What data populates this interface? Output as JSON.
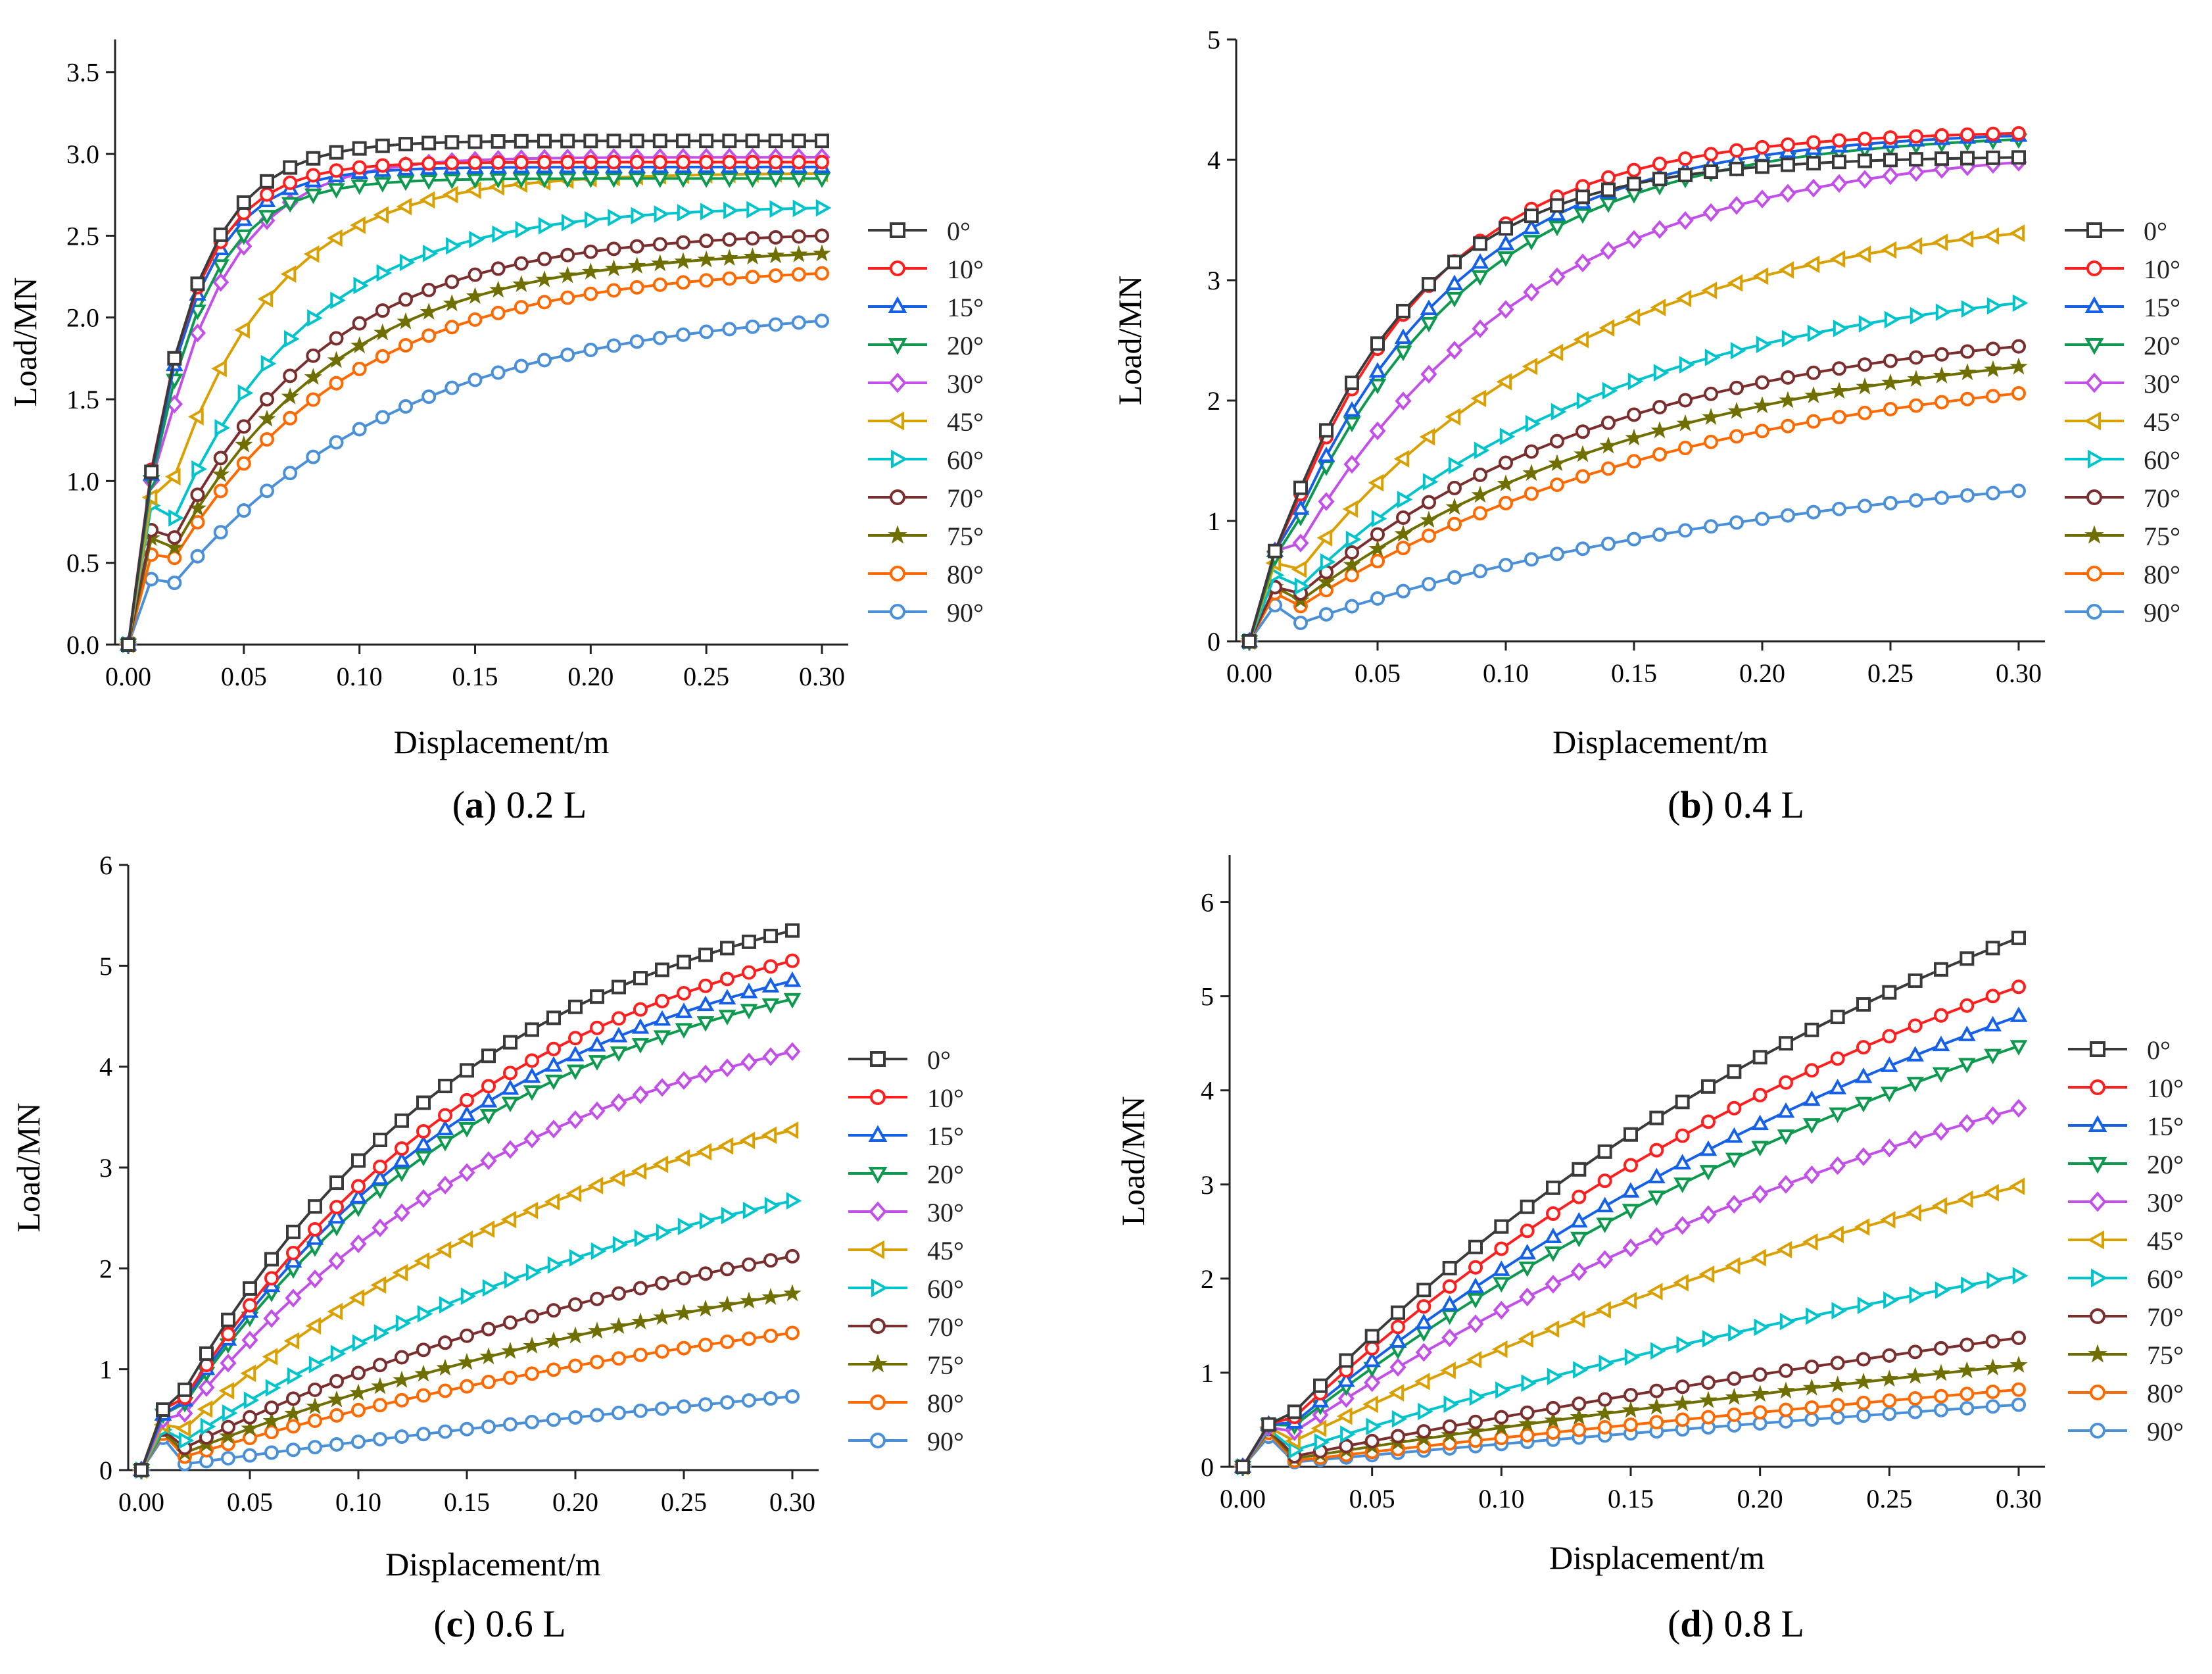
{
  "figure": {
    "captions": [
      {
        "letter": "a",
        "text": ") 0.2 L"
      },
      {
        "letter": "b",
        "text": ") 0.4 L"
      },
      {
        "letter": "c",
        "text": ") 0.6 L"
      },
      {
        "letter": "d",
        "text": ") 0.8 L"
      }
    ],
    "open_paren": "("
  },
  "series_style": [
    {
      "name": "0°",
      "color": "#3a3a3a",
      "marker": "square-icon"
    },
    {
      "name": "10°",
      "color": "#ff1f1f",
      "marker": "circle-icon"
    },
    {
      "name": "15°",
      "color": "#1560e8",
      "marker": "triangle-up-icon"
    },
    {
      "name": "20°",
      "color": "#0d9a4f",
      "marker": "triangle-down-icon"
    },
    {
      "name": "30°",
      "color": "#c24fe8",
      "marker": "diamond-icon"
    },
    {
      "name": "45°",
      "color": "#d9a000",
      "marker": "triangle-left-icon"
    },
    {
      "name": "60°",
      "color": "#00c4cc",
      "marker": "triangle-right-icon"
    },
    {
      "name": "70°",
      "color": "#7a2e2e",
      "marker": "circle-icon"
    },
    {
      "name": "75°",
      "color": "#6f6f00",
      "marker": "star-icon"
    },
    {
      "name": "80°",
      "color": "#ff6a00",
      "marker": "circle-icon"
    },
    {
      "name": "90°",
      "color": "#4a90d9",
      "marker": "circle-icon"
    }
  ],
  "chart_data": [
    {
      "type": "line",
      "title": "(a) 0.2 L",
      "xlabel": "Displacement/m",
      "ylabel": "Load/MN",
      "xlim": [
        0,
        0.3
      ],
      "ylim": [
        0,
        3.7
      ],
      "xticks": [
        0.0,
        0.05,
        0.1,
        0.15,
        0.2,
        0.25,
        0.3
      ],
      "xtick_labels": [
        "0.00",
        "0.05",
        "0.10",
        "0.15",
        "0.20",
        "0.25",
        "0.30"
      ],
      "yticks": [
        0,
        0.5,
        1.0,
        1.5,
        2.0,
        2.5,
        3.0,
        3.5
      ],
      "ytick_labels": [
        "0.0",
        "0.5",
        "1.0",
        "1.5",
        "2.0",
        "2.5",
        "3.0",
        "3.5"
      ],
      "legend": [
        "0°",
        "10°",
        "15°",
        "20°",
        "30°",
        "45°",
        "60°",
        "70°",
        "75°",
        "80°",
        "90°"
      ],
      "series": [
        {
          "name": "0°",
          "final": 3.08,
          "k": 42,
          "early": 1.03
        },
        {
          "name": "10°",
          "final": 2.95,
          "k": 45,
          "early": 1.0
        },
        {
          "name": "15°",
          "final": 2.92,
          "k": 44,
          "early": 1.0
        },
        {
          "name": "20°",
          "final": 2.85,
          "k": 42,
          "early": 1.0
        },
        {
          "name": "30°",
          "final": 2.98,
          "k": 34,
          "early": 1.0
        },
        {
          "name": "45°",
          "final": 2.88,
          "k": 22,
          "early": 0.9
        },
        {
          "name": "60°",
          "final": 2.67,
          "k": 17,
          "early": 0.85
        },
        {
          "name": "70°",
          "final": 2.5,
          "k": 15,
          "early": 0.7
        },
        {
          "name": "75°",
          "final": 2.39,
          "k": 14,
          "early": 0.65
        },
        {
          "name": "80°",
          "final": 2.27,
          "k": 13,
          "early": 0.55
        },
        {
          "name": "90°",
          "final": 1.98,
          "k": 10,
          "early": 0.4
        }
      ]
    },
    {
      "type": "line",
      "title": "(b) 0.4 L",
      "xlabel": "Displacement/m",
      "ylabel": "Load/MN",
      "xlim": [
        0,
        0.3
      ],
      "ylim": [
        0,
        5
      ],
      "xticks": [
        0.0,
        0.05,
        0.1,
        0.15,
        0.2,
        0.25,
        0.3
      ],
      "xtick_labels": [
        "0.00",
        "0.05",
        "0.10",
        "0.15",
        "0.20",
        "0.25",
        "0.30"
      ],
      "yticks": [
        0,
        1,
        2,
        3,
        4,
        5
      ],
      "ytick_labels": [
        "0",
        "1",
        "2",
        "3",
        "4",
        "5"
      ],
      "legend": [
        "0°",
        "10°",
        "15°",
        "20°",
        "30°",
        "45°",
        "60°",
        "70°",
        "75°",
        "80°",
        "90°"
      ],
      "series": [
        {
          "name": "0°",
          "final": 4.02,
          "k": 19,
          "early": 0.75
        },
        {
          "name": "10°",
          "final": 4.22,
          "k": 17,
          "early": 0.75
        },
        {
          "name": "15°",
          "final": 4.2,
          "k": 15,
          "early": 0.75
        },
        {
          "name": "20°",
          "final": 4.17,
          "k": 14,
          "early": 0.7
        },
        {
          "name": "30°",
          "final": 3.98,
          "k": 11,
          "early": 0.75
        },
        {
          "name": "45°",
          "final": 3.39,
          "k": 9,
          "early": 0.65
        },
        {
          "name": "60°",
          "final": 2.81,
          "k": 8,
          "early": 0.55
        },
        {
          "name": "70°",
          "final": 2.45,
          "k": 8,
          "early": 0.45
        },
        {
          "name": "75°",
          "final": 2.28,
          "k": 7,
          "early": 0.45
        },
        {
          "name": "80°",
          "final": 2.06,
          "k": 6.5,
          "early": 0.4
        },
        {
          "name": "90°",
          "final": 1.25,
          "k": 5,
          "early": 0.3
        }
      ]
    },
    {
      "type": "line",
      "title": "(c) 0.6 L",
      "xlabel": "Displacement/m",
      "ylabel": "Load/MN",
      "xlim": [
        0,
        0.3
      ],
      "ylim": [
        0,
        6
      ],
      "xticks": [
        0.0,
        0.05,
        0.1,
        0.15,
        0.2,
        0.25,
        0.3
      ],
      "xtick_labels": [
        "0.00",
        "0.05",
        "0.10",
        "0.15",
        "0.20",
        "0.25",
        "0.30"
      ],
      "yticks": [
        0,
        1,
        2,
        3,
        4,
        5,
        6
      ],
      "ytick_labels": [
        "0",
        "1",
        "2",
        "3",
        "4",
        "5",
        "6"
      ],
      "legend": [
        "0°",
        "10°",
        "15°",
        "20°",
        "30°",
        "45°",
        "60°",
        "70°",
        "75°",
        "80°",
        "90°"
      ],
      "series": [
        {
          "name": "0°",
          "final": 5.35,
          "k": 7,
          "early": 0.6
        },
        {
          "name": "10°",
          "final": 5.05,
          "k": 6.5,
          "early": 0.6
        },
        {
          "name": "15°",
          "final": 4.85,
          "k": 6.5,
          "early": 0.55
        },
        {
          "name": "20°",
          "final": 4.67,
          "k": 6.5,
          "early": 0.55
        },
        {
          "name": "30°",
          "final": 4.15,
          "k": 6,
          "early": 0.5
        },
        {
          "name": "45°",
          "final": 3.37,
          "k": 5,
          "early": 0.45
        },
        {
          "name": "60°",
          "final": 2.67,
          "k": 4,
          "early": 0.4
        },
        {
          "name": "70°",
          "final": 2.12,
          "k": 3.5,
          "early": 0.4
        },
        {
          "name": "75°",
          "final": 1.75,
          "k": 3,
          "early": 0.38
        },
        {
          "name": "80°",
          "final": 1.36,
          "k": 3,
          "early": 0.36
        },
        {
          "name": "90°",
          "final": 0.73,
          "k": 1.5,
          "early": 0.32
        }
      ]
    },
    {
      "type": "line",
      "title": "(d) 0.8 L",
      "xlabel": "Displacement/m",
      "ylabel": "Load/MN",
      "xlim": [
        0,
        0.3
      ],
      "ylim": [
        0,
        6.5
      ],
      "xticks": [
        0.0,
        0.05,
        0.1,
        0.15,
        0.2,
        0.25,
        0.3
      ],
      "xtick_labels": [
        "0.00",
        "0.05",
        "0.10",
        "0.15",
        "0.20",
        "0.25",
        "0.30"
      ],
      "yticks": [
        0,
        1,
        2,
        3,
        4,
        5,
        6
      ],
      "ytick_labels": [
        "0",
        "1",
        "2",
        "3",
        "4",
        "5",
        "6"
      ],
      "legend": [
        "0°",
        "10°",
        "15°",
        "20°",
        "30°",
        "45°",
        "60°",
        "70°",
        "75°",
        "80°",
        "90°"
      ],
      "series": [
        {
          "name": "0°",
          "final": 5.62,
          "k": 3.5,
          "early": 0.45
        },
        {
          "name": "10°",
          "final": 5.1,
          "k": 3.5,
          "early": 0.45
        },
        {
          "name": "15°",
          "final": 4.79,
          "k": 3,
          "early": 0.45
        },
        {
          "name": "20°",
          "final": 4.47,
          "k": 3,
          "early": 0.45
        },
        {
          "name": "30°",
          "final": 3.81,
          "k": 3,
          "early": 0.42
        },
        {
          "name": "45°",
          "final": 2.98,
          "k": 2.5,
          "early": 0.42
        },
        {
          "name": "60°",
          "final": 2.03,
          "k": 2,
          "early": 0.4
        },
        {
          "name": "70°",
          "final": 1.37,
          "k": 1.5,
          "early": 0.4
        },
        {
          "name": "75°",
          "final": 1.08,
          "k": 1.5,
          "early": 0.38
        },
        {
          "name": "80°",
          "final": 0.82,
          "k": 1.2,
          "early": 0.36
        },
        {
          "name": "90°",
          "final": 0.66,
          "k": 1.0,
          "early": 0.32
        }
      ]
    }
  ]
}
